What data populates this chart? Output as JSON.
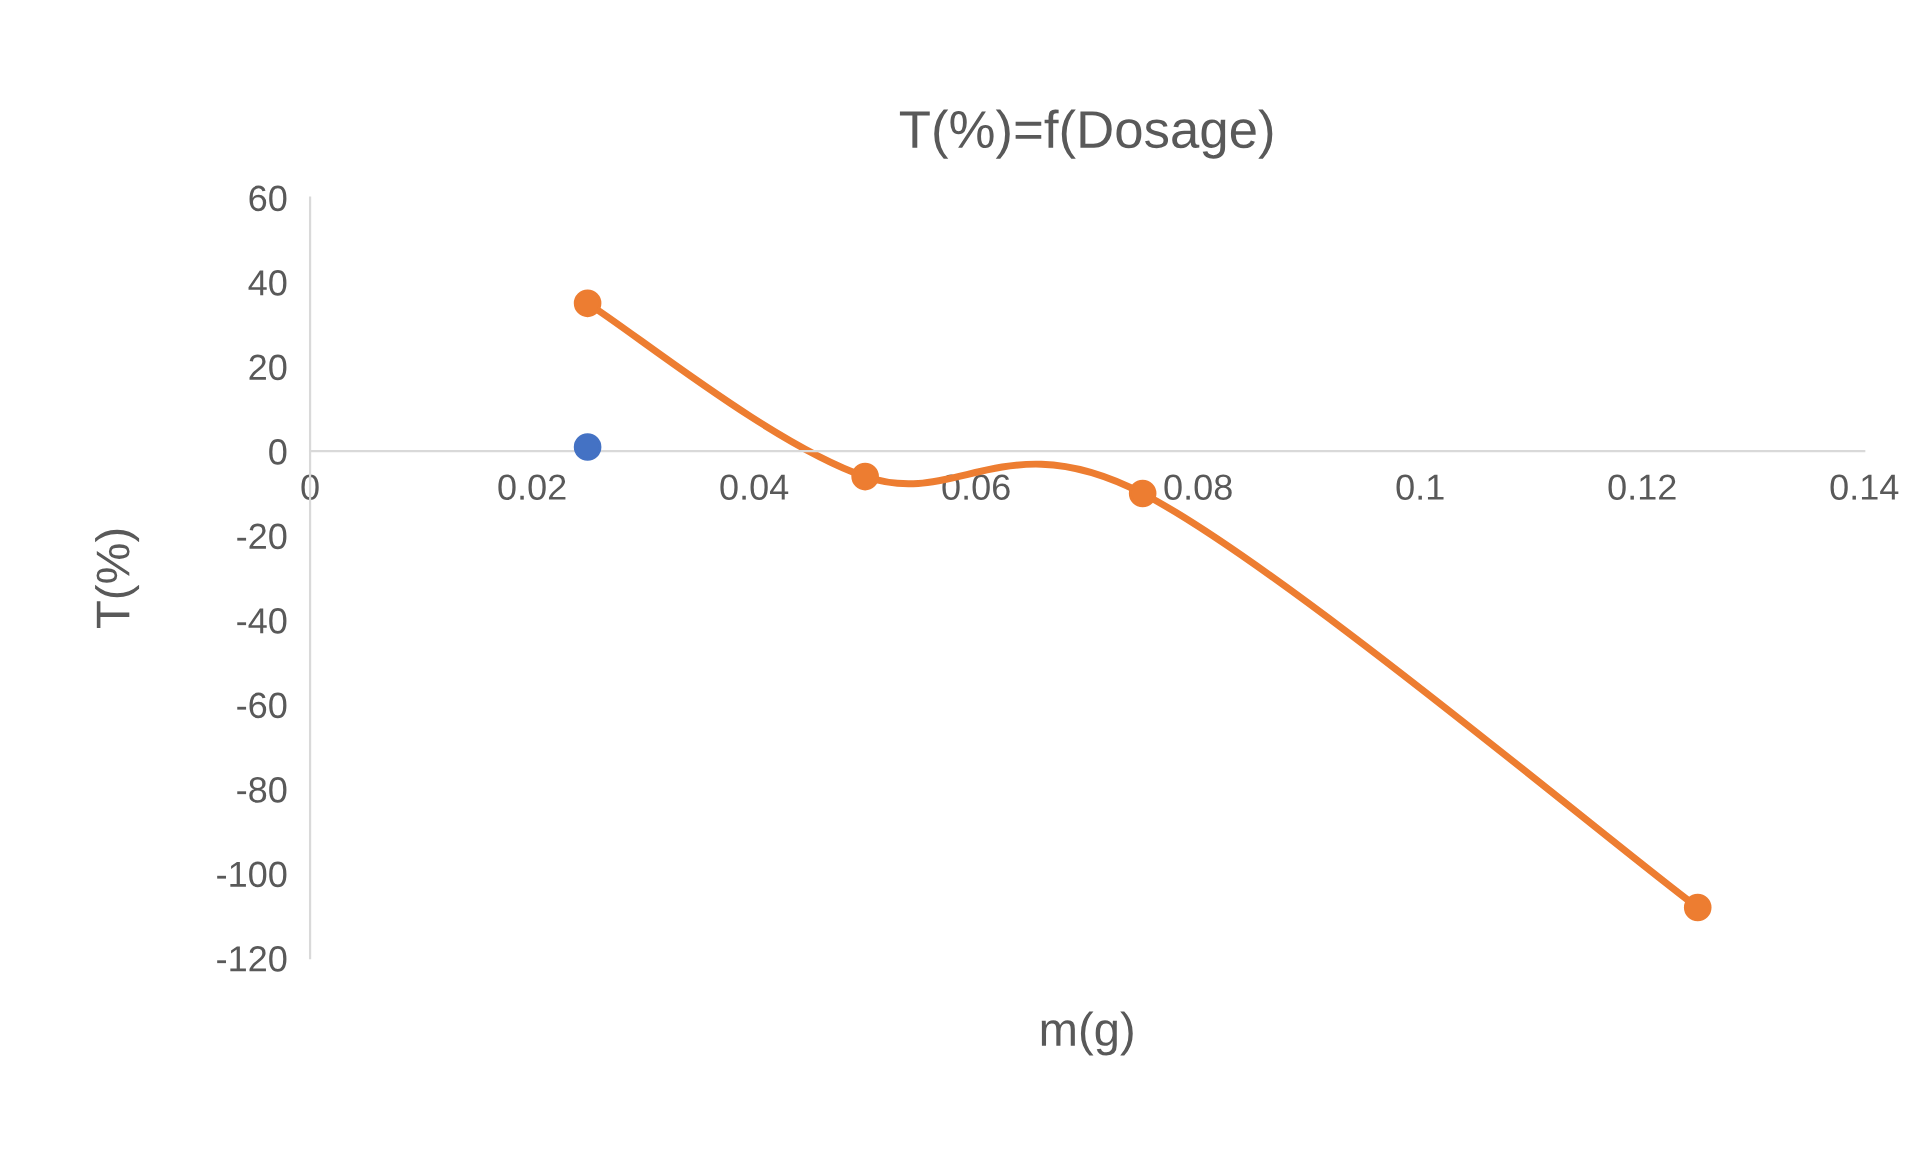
{
  "chart_data": {
    "type": "line",
    "title": "T(%)=f(Dosage)",
    "xlabel": "m(g)",
    "ylabel": "T(%)",
    "xlim": [
      0,
      0.14
    ],
    "xticks": [
      0,
      0.02,
      0.04,
      0.06,
      0.08,
      0.1,
      0.12,
      0.14
    ],
    "ylim": [
      -120,
      60
    ],
    "yticks": [
      -120,
      -100,
      -80,
      -60,
      -40,
      -20,
      0,
      20,
      40,
      60
    ],
    "grid": false,
    "legend": false,
    "marker": "circle",
    "series": [
      {
        "type": "scatter",
        "color": "#4472c4",
        "x": [
          0.025
        ],
        "values": [
          1
        ]
      },
      {
        "color": "#ed7d31",
        "x": [
          0.025,
          0.05,
          0.075,
          0.125
        ],
        "values": [
          35,
          -6,
          -10,
          -108
        ]
      }
    ]
  }
}
